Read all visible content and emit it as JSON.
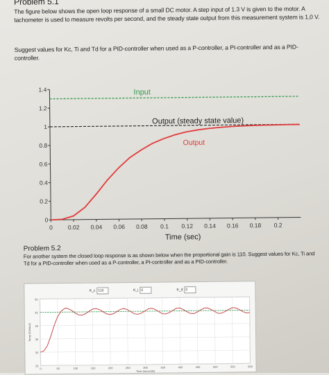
{
  "problem_51": {
    "title": "Problem 5.1",
    "text": "The figure below shows the open loop response of a small DC motor. A step input of 1.3 V is given to the motor. A tachometer is used to measure revolts per second, and the steady state output from this measurement system is 1,0 V.",
    "question": "Suggest values for Kc, Ti and Td for a PID-controller when used as a P-controller, a PI-controller and as a PID-controller."
  },
  "problem_52": {
    "title": "Problem 5.2",
    "text": "For another system the closed loop response is as shown below when the proportional gain is 110. Suggest values for Kc, Ti and Td for a PID-controller when used as a P-controller, a PI-controller and as a PID-controller.",
    "gains": [
      {
        "label": "K_c",
        "value": "110"
      },
      {
        "label": "K_i",
        "value": "0"
      },
      {
        "label": "K_d",
        "value": "0"
      }
    ]
  },
  "chart_data": [
    {
      "type": "line",
      "title": "",
      "xlabel": "Time (sec)",
      "ylabel": "",
      "xlim": [
        0,
        0.22
      ],
      "ylim": [
        0,
        1.4
      ],
      "x_ticks": [
        "0",
        "0.02",
        "0.04",
        "0.06",
        "0.08",
        "0.1",
        "0.12",
        "0.14",
        "0.16",
        "0.18",
        "0.2"
      ],
      "y_ticks": [
        "0",
        "0.2",
        "0.4",
        "0.6",
        "0.8",
        "1",
        "1.2",
        "1.4"
      ],
      "grid": false,
      "colors": {
        "input": "#2f9a4c",
        "steady": "#222222",
        "output": "#e03a3a"
      },
      "annotations": [
        {
          "text": "Input",
          "series": "input"
        },
        {
          "text": "Output (steady state value)",
          "series": "steady"
        },
        {
          "text": "Output",
          "series": "output"
        }
      ],
      "series": [
        {
          "key": "input",
          "style": "dashed",
          "x": [
            0,
            0.22
          ],
          "y": [
            1.3,
            1.3
          ]
        },
        {
          "key": "steady",
          "style": "dashed",
          "x": [
            0,
            0.22
          ],
          "y": [
            1.0,
            1.0
          ]
        },
        {
          "key": "output",
          "style": "solid",
          "x": [
            0,
            0.01,
            0.02,
            0.03,
            0.04,
            0.05,
            0.06,
            0.07,
            0.08,
            0.09,
            0.1,
            0.11,
            0.12,
            0.13,
            0.14,
            0.15,
            0.16,
            0.17,
            0.18,
            0.19,
            0.2,
            0.21,
            0.22
          ],
          "y": [
            0,
            0.005,
            0.04,
            0.13,
            0.27,
            0.42,
            0.55,
            0.66,
            0.74,
            0.81,
            0.86,
            0.9,
            0.93,
            0.95,
            0.965,
            0.975,
            0.983,
            0.988,
            0.992,
            0.994,
            0.996,
            0.997,
            0.997
          ]
        }
      ]
    },
    {
      "type": "line",
      "title": "",
      "xlabel": "Time (seconds)",
      "ylabel": "Temp (Celsius)",
      "xlim": [
        0,
        600
      ],
      "ylim": [
        25,
        50
      ],
      "x_ticks": [
        "0",
        "50",
        "100",
        "150",
        "200",
        "250",
        "300",
        "350",
        "400",
        "450",
        "500",
        "550",
        "600"
      ],
      "y_ticks": [
        "25",
        "30",
        "35",
        "40",
        "45",
        "50"
      ],
      "grid": true,
      "colors": {
        "setpoint": "#2f9a4c",
        "response": "#c44a4a"
      },
      "series": [
        {
          "key": "setpoint",
          "style": "dashed",
          "x": [
            0,
            600
          ],
          "y": [
            45,
            45
          ]
        },
        {
          "key": "response",
          "style": "solid",
          "x": [
            0,
            10,
            20,
            30,
            40,
            50,
            60,
            70,
            75,
            80,
            90,
            100,
            110,
            120,
            130,
            140,
            150,
            160,
            170,
            180,
            190,
            200,
            210,
            220,
            230,
            240,
            250,
            260,
            270,
            280,
            290,
            300,
            310,
            320,
            330,
            340,
            350,
            360,
            370,
            380,
            390,
            400,
            410,
            420,
            430,
            440,
            450,
            460,
            470,
            480,
            490,
            500,
            510,
            520,
            530,
            540,
            550,
            560,
            570,
            580,
            590,
            600
          ],
          "y": [
            30,
            30.5,
            32.5,
            36,
            40,
            43.3,
            45.3,
            46.3,
            46.5,
            46.3,
            45.6,
            44.7,
            43.9,
            43.8,
            44.3,
            45.2,
            46.0,
            46.2,
            45.8,
            45.0,
            44.2,
            43.9,
            44.2,
            45.0,
            45.8,
            46.1,
            45.7,
            44.9,
            44.1,
            43.9,
            44.3,
            45.1,
            45.9,
            46.1,
            45.6,
            44.8,
            44.0,
            43.9,
            44.4,
            45.2,
            46.0,
            46.1,
            45.5,
            44.7,
            44.0,
            43.9,
            44.5,
            45.3,
            46.0,
            46.0,
            45.4,
            44.6,
            43.9,
            44.0,
            44.6,
            45.4,
            46.0,
            45.9,
            45.3,
            44.5,
            44.0,
            44.1
          ]
        }
      ]
    }
  ]
}
